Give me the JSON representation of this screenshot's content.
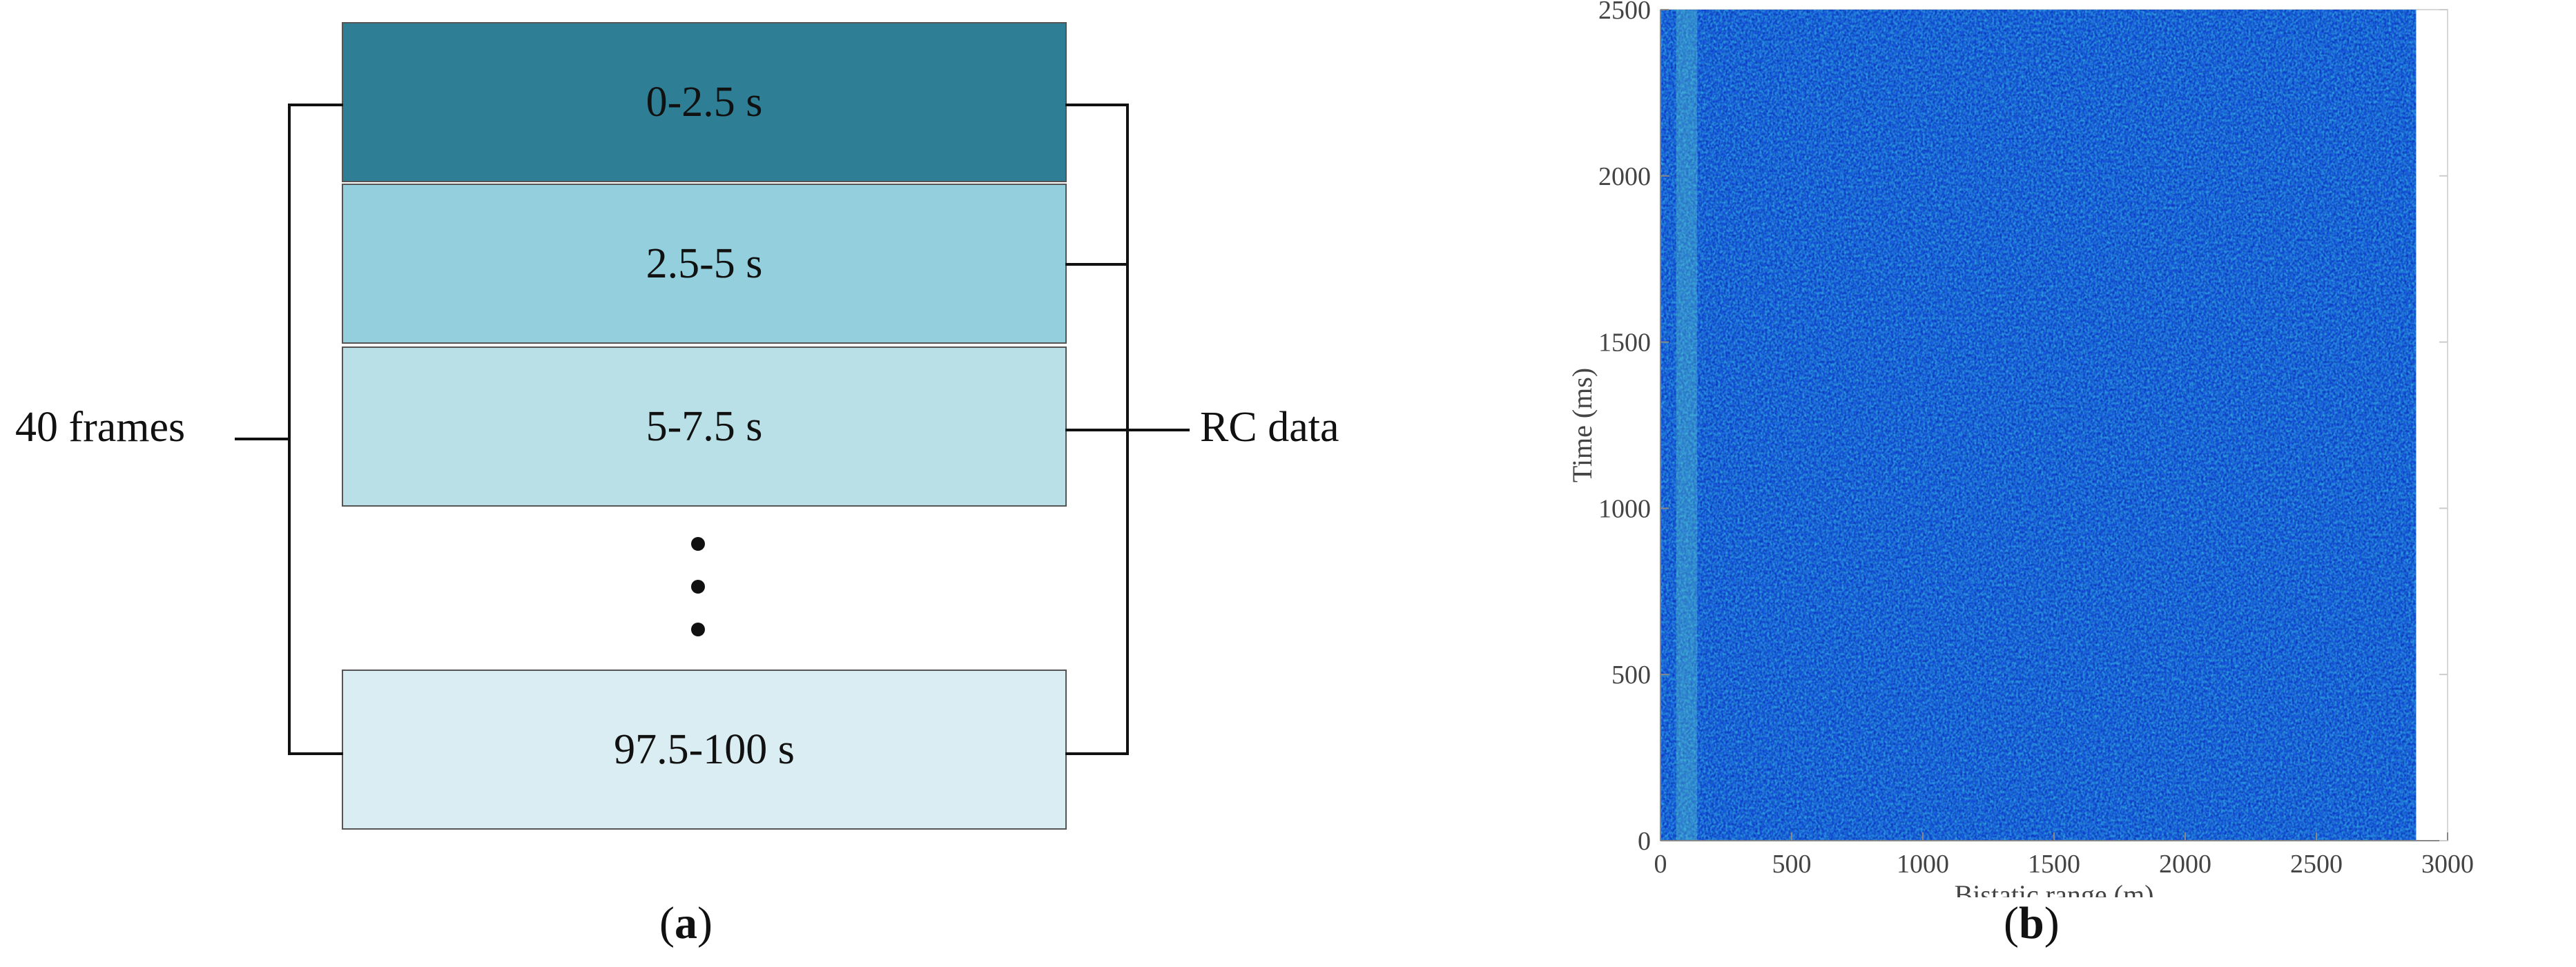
{
  "panel_a": {
    "frames": [
      {
        "label": "0-2.5 s",
        "color": "#2e7f95"
      },
      {
        "label": "2.5-5 s",
        "color": "#93cfdc"
      },
      {
        "label": "5-7.5 s",
        "color": "#b9dfe7"
      },
      {
        "label": "97.5-100 s",
        "color": "#d9edf2"
      }
    ],
    "ellipsis_icon": "vertical-ellipsis-icon",
    "left_label": "40 frames",
    "right_label": "RC data",
    "caption": {
      "open": "(",
      "letter": "a",
      "close": ")"
    }
  },
  "panel_b": {
    "caption": {
      "open": "(",
      "letter": "b",
      "close": ")"
    }
  },
  "chart_data": {
    "type": "heatmap",
    "title": "",
    "xlabel": "Bistatic range (m)",
    "ylabel": "Time (ms)",
    "xlim": [
      0,
      3000
    ],
    "ylim": [
      0,
      2500
    ],
    "x_ticks": [
      0,
      500,
      1000,
      1500,
      2000,
      2500,
      3000
    ],
    "y_ticks": [
      0,
      500,
      1000,
      1500,
      2000,
      2500
    ],
    "data_extent_x": [
      0,
      2880
    ],
    "data_extent_y": [
      0,
      2500
    ],
    "colormap": [
      "#0a1fa0",
      "#1e55e0",
      "#2f86f0",
      "#39c0e6",
      "#8fe07a"
    ],
    "background_color": "#1f5fe6",
    "features": [
      {
        "type": "vertical-stripe",
        "x_range": [
          60,
          140
        ],
        "note": "brighter cyan/green stripe near zero range"
      }
    ]
  }
}
